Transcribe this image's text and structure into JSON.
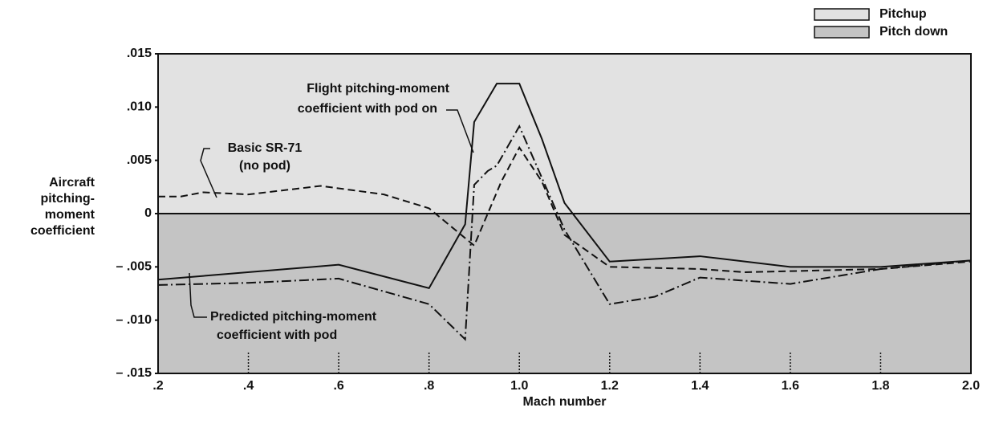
{
  "chart_data": {
    "type": "line",
    "xlabel": "Mach number",
    "ylabel": [
      "Aircraft",
      "pitching-",
      "moment",
      "coefficient"
    ],
    "xlim": [
      0.2,
      2.0
    ],
    "ylim": [
      -0.015,
      0.015
    ],
    "xticks": [
      {
        "value": 0.2,
        "label": ".2"
      },
      {
        "value": 0.4,
        "label": ".4"
      },
      {
        "value": 0.6,
        "label": ".6"
      },
      {
        "value": 0.8,
        "label": ".8"
      },
      {
        "value": 1.0,
        "label": "1.0"
      },
      1.2,
      1.4,
      1.6,
      1.8,
      {
        "value": 2.0,
        "label": "2.0"
      }
    ],
    "yticks": [
      {
        "value": 0.015,
        "label": ".015"
      },
      {
        "value": 0.01,
        "label": ".010"
      },
      {
        "value": 0.005,
        "label": ".005"
      },
      0,
      {
        "value": -0.005,
        "label": "– .005"
      },
      {
        "value": -0.01,
        "label": "– .010"
      },
      {
        "value": -0.015,
        "label": "– .015"
      }
    ],
    "regions": [
      {
        "name": "Pitchup",
        "color": "#e2e2e2"
      },
      {
        "name": "Pitch down",
        "color": "#c4c4c4"
      }
    ],
    "series": [
      {
        "name": "Flight pitching-moment coefficient with pod on",
        "color": "#111111",
        "dash": "solid",
        "x": [
          0.2,
          0.6,
          0.8,
          0.88,
          0.9,
          0.95,
          1.0,
          1.05,
          1.1,
          1.2,
          1.4,
          1.6,
          1.8,
          2.0
        ],
        "values": [
          -0.0062,
          -0.0048,
          -0.007,
          -0.001,
          0.0086,
          0.0122,
          0.0122,
          0.007,
          0.001,
          -0.0045,
          -0.004,
          -0.005,
          -0.005,
          -0.0044
        ]
      },
      {
        "name": "Basic SR-71 (no pod)",
        "color": "#111111",
        "dash": "dashed",
        "x": [
          0.2,
          0.25,
          0.3,
          0.4,
          0.56,
          0.7,
          0.8,
          0.9,
          0.92,
          0.96,
          1.0,
          1.05,
          1.1,
          1.2,
          1.4,
          1.5,
          1.6,
          1.8,
          2.0
        ],
        "values": [
          0.0016,
          0.0016,
          0.002,
          0.0018,
          0.0026,
          0.0018,
          0.0005,
          -0.003,
          -0.001,
          0.003,
          0.0062,
          0.003,
          -0.002,
          -0.005,
          -0.0052,
          -0.0055,
          -0.0054,
          -0.0052,
          -0.0045
        ]
      },
      {
        "name": "Predicted pitching-moment coefficient with pod",
        "color": "#111111",
        "dash": "dashdot",
        "x": [
          0.2,
          0.4,
          0.6,
          0.8,
          0.88,
          0.9,
          0.93,
          0.95,
          1.0,
          1.1,
          1.2,
          1.3,
          1.4,
          1.6,
          1.8,
          2.0
        ],
        "values": [
          -0.0067,
          -0.0065,
          -0.0061,
          -0.0085,
          -0.0118,
          0.0027,
          0.004,
          0.0045,
          0.0082,
          -0.0015,
          -0.0085,
          -0.0078,
          -0.006,
          -0.0066,
          -0.0052,
          -0.0044
        ]
      }
    ],
    "annotations": [
      [
        "Flight pitching-moment",
        "coefficient with pod on"
      ],
      [
        "Basic SR-71",
        "(no pod)"
      ],
      [
        "Predicted pitching-moment",
        "coefficient with pod"
      ]
    ]
  }
}
